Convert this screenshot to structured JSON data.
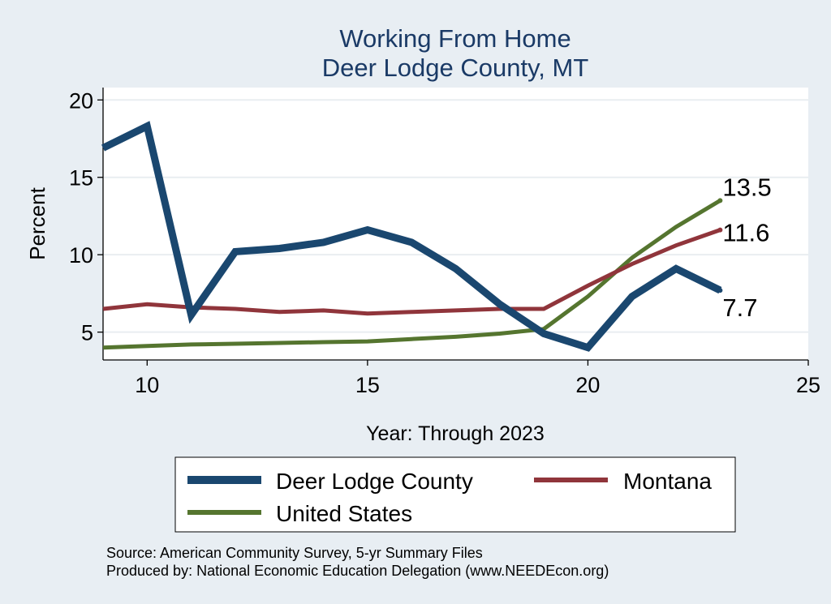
{
  "chart_data": {
    "type": "line",
    "title": "Working From Home",
    "subtitle": "Deer Lodge County, MT",
    "xlabel": "Year: Through 2023",
    "ylabel": "Percent",
    "xlim": [
      9,
      25
    ],
    "ylim": [
      3.2,
      20.8
    ],
    "xticks": [
      10,
      15,
      20,
      25
    ],
    "yticks": [
      5,
      10,
      15,
      20
    ],
    "grid": true,
    "legend_position": "bottom",
    "series": [
      {
        "name": "Deer Lodge County",
        "color": "#1a476f",
        "width": 9,
        "x": [
          9,
          10,
          11,
          12,
          13,
          14,
          15,
          16,
          17,
          18,
          19,
          20,
          21,
          22,
          23
        ],
        "values": [
          16.9,
          18.3,
          6.1,
          10.2,
          10.4,
          10.8,
          11.6,
          10.8,
          9.1,
          6.8,
          4.9,
          4.0,
          7.3,
          9.1,
          7.7
        ],
        "end_label": "7.7"
      },
      {
        "name": "Montana",
        "color": "#90353b",
        "width": 5,
        "x": [
          9,
          10,
          11,
          12,
          13,
          14,
          15,
          16,
          17,
          18,
          19,
          20,
          21,
          22,
          23
        ],
        "values": [
          6.5,
          6.8,
          6.6,
          6.5,
          6.3,
          6.4,
          6.2,
          6.3,
          6.4,
          6.5,
          6.5,
          8.0,
          9.4,
          10.6,
          11.6
        ],
        "end_label": "11.6"
      },
      {
        "name": "United States",
        "color": "#55752f",
        "width": 5,
        "x": [
          9,
          10,
          11,
          12,
          13,
          14,
          15,
          16,
          17,
          18,
          19,
          20,
          21,
          22,
          23
        ],
        "values": [
          4.0,
          4.1,
          4.2,
          4.25,
          4.3,
          4.35,
          4.4,
          4.55,
          4.7,
          4.9,
          5.2,
          7.3,
          9.8,
          11.8,
          13.5
        ],
        "end_label": "13.5"
      }
    ],
    "source_lines": [
      "Source: American Community Survey, 5-yr Summary Files",
      "Produced by: National Economic Education Delegation (www.NEEDEcon.org)"
    ]
  }
}
